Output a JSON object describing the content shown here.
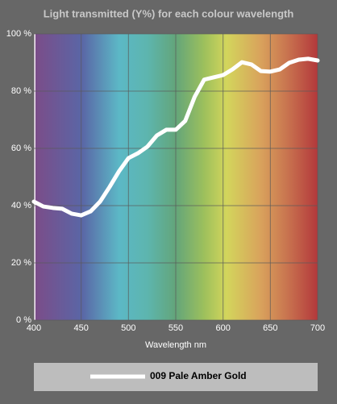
{
  "chart_data": {
    "type": "line",
    "title": "Light transmitted (Y%) for each colour wavelength",
    "x_label": "Wavelength nm",
    "x": [
      400,
      410,
      420,
      430,
      440,
      450,
      460,
      470,
      480,
      490,
      500,
      510,
      520,
      530,
      540,
      550,
      560,
      570,
      580,
      590,
      600,
      610,
      620,
      630,
      640,
      650,
      660,
      670,
      680,
      690,
      700
    ],
    "series": [
      {
        "name": "009 Pale Amber Gold",
        "color": "#ffffff",
        "values": [
          41.4,
          39.7,
          39.2,
          38.9,
          37.2,
          36.6,
          38,
          41.4,
          46.5,
          52,
          56.6,
          58.3,
          60.6,
          64.5,
          66.5,
          66.5,
          69.6,
          78,
          84,
          84.8,
          85.6,
          87.6,
          90.1,
          89.3,
          87,
          86.8,
          87.6,
          89.9,
          91,
          91.3,
          90.7
        ]
      }
    ],
    "xlim": [
      400,
      700
    ],
    "xticks": [
      400,
      450,
      500,
      550,
      600,
      650,
      700
    ],
    "ylim": [
      0,
      100
    ],
    "yticks": [
      {
        "value": 0,
        "label": "0 %"
      },
      {
        "value": 20,
        "label": "20 %"
      },
      {
        "value": 40,
        "label": "40 %"
      },
      {
        "value": 60,
        "label": "60 %"
      },
      {
        "value": 80,
        "label": "80 %"
      },
      {
        "value": 100,
        "label": "100 %"
      }
    ],
    "grid": true
  }
}
